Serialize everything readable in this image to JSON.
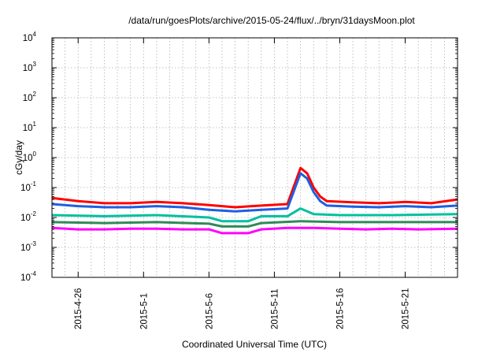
{
  "chart_data": {
    "type": "line",
    "title": "/data/run/goesPlots/archive/2015-05-24/flux/../bryn/31daysMoon.plot",
    "xlabel": "Coordinated Universal Time (UTC)",
    "ylabel": "cGy/day",
    "yscale": "log",
    "ylim": [
      0.0001,
      10000
    ],
    "xlim": [
      "2015-04-24",
      "2015-05-25"
    ],
    "grid": true,
    "legend": "none",
    "y_ticks": [
      {
        "base": "10",
        "exp": "-4",
        "value": 0.0001
      },
      {
        "base": "10",
        "exp": "-3",
        "value": 0.001
      },
      {
        "base": "10",
        "exp": "-2",
        "value": 0.01
      },
      {
        "base": "10",
        "exp": "-1",
        "value": 0.1
      },
      {
        "base": "10",
        "exp": "0",
        "value": 1
      },
      {
        "base": "10",
        "exp": "1",
        "value": 10
      },
      {
        "base": "10",
        "exp": "2",
        "value": 100
      },
      {
        "base": "10",
        "exp": "3",
        "value": 1000
      },
      {
        "base": "10",
        "exp": "4",
        "value": 10000
      }
    ],
    "x_ticks": [
      "2015-4-26",
      "2015-5-1",
      "2015-5-6",
      "2015-5-11",
      "2015-5-16",
      "2015-5-21"
    ],
    "series": [
      {
        "color": "#ff0000",
        "x": [
          "2015-04-24",
          "2015-04-26",
          "2015-04-28",
          "2015-04-30",
          "2015-05-02",
          "2015-05-04",
          "2015-05-06",
          "2015-05-08",
          "2015-05-10",
          "2015-05-12",
          "2015-05-13",
          "2015-05-13T12",
          "2015-05-14",
          "2015-05-14T12",
          "2015-05-15",
          "2015-05-17",
          "2015-05-19",
          "2015-05-21",
          "2015-05-23",
          "2015-05-25"
        ],
        "values": [
          0.045,
          0.035,
          0.03,
          0.03,
          0.033,
          0.03,
          0.026,
          0.022,
          0.025,
          0.028,
          0.45,
          0.3,
          0.1,
          0.05,
          0.035,
          0.032,
          0.03,
          0.033,
          0.03,
          0.04
        ]
      },
      {
        "color": "#1f5fe0",
        "x": [
          "2015-04-24",
          "2015-04-26",
          "2015-04-28",
          "2015-04-30",
          "2015-05-02",
          "2015-05-04",
          "2015-05-06",
          "2015-05-08",
          "2015-05-10",
          "2015-05-12",
          "2015-05-13",
          "2015-05-13T12",
          "2015-05-14",
          "2015-05-14T12",
          "2015-05-15",
          "2015-05-17",
          "2015-05-19",
          "2015-05-21",
          "2015-05-23",
          "2015-05-25"
        ],
        "values": [
          0.028,
          0.024,
          0.022,
          0.022,
          0.024,
          0.022,
          0.018,
          0.016,
          0.018,
          0.02,
          0.3,
          0.2,
          0.07,
          0.035,
          0.025,
          0.023,
          0.022,
          0.024,
          0.022,
          0.025
        ]
      },
      {
        "color": "#00c0a0",
        "x": [
          "2015-04-24",
          "2015-04-28",
          "2015-05-02",
          "2015-05-06",
          "2015-05-07",
          "2015-05-09",
          "2015-05-10",
          "2015-05-12",
          "2015-05-13",
          "2015-05-14",
          "2015-05-16",
          "2015-05-20",
          "2015-05-25"
        ],
        "values": [
          0.012,
          0.011,
          0.012,
          0.01,
          0.0075,
          0.0075,
          0.011,
          0.011,
          0.02,
          0.013,
          0.012,
          0.012,
          0.013
        ]
      },
      {
        "color": "#2e8b57",
        "x": [
          "2015-04-24",
          "2015-04-28",
          "2015-05-02",
          "2015-05-06",
          "2015-05-07",
          "2015-05-09",
          "2015-05-10",
          "2015-05-13",
          "2015-05-16",
          "2015-05-20",
          "2015-05-25"
        ],
        "values": [
          0.007,
          0.0065,
          0.007,
          0.0062,
          0.005,
          0.005,
          0.0065,
          0.0075,
          0.007,
          0.007,
          0.007
        ]
      },
      {
        "color": "#ff00ff",
        "x": [
          "2015-04-24",
          "2015-04-26",
          "2015-04-28",
          "2015-04-30",
          "2015-05-02",
          "2015-05-04",
          "2015-05-06",
          "2015-05-07",
          "2015-05-09",
          "2015-05-10",
          "2015-05-12",
          "2015-05-14",
          "2015-05-16",
          "2015-05-18",
          "2015-05-20",
          "2015-05-22",
          "2015-05-25"
        ],
        "values": [
          0.0045,
          0.004,
          0.004,
          0.0042,
          0.0042,
          0.004,
          0.004,
          0.003,
          0.003,
          0.004,
          0.0045,
          0.0045,
          0.0042,
          0.004,
          0.0042,
          0.004,
          0.0042
        ]
      }
    ]
  }
}
